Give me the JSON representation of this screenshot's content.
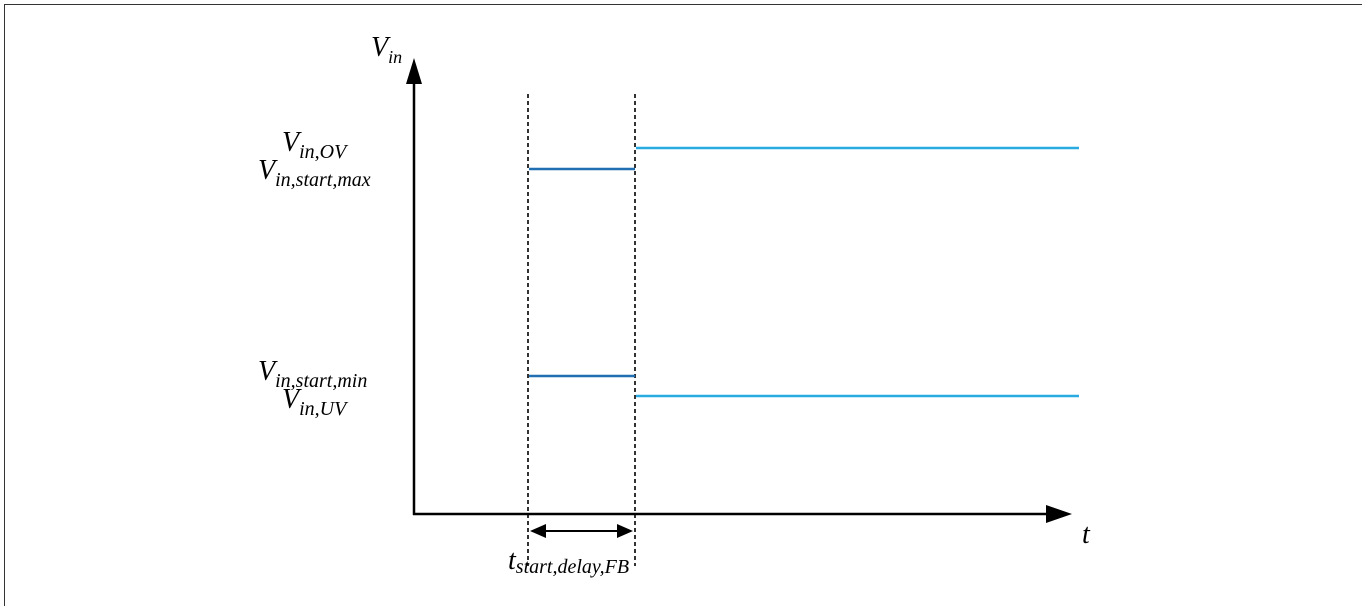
{
  "axes": {
    "y_label": {
      "main": "V",
      "sub": "in"
    },
    "x_label": "t"
  },
  "levels": {
    "ov": {
      "main": "V",
      "sub": "in,OV"
    },
    "start_max": {
      "main": "V",
      "sub": "in,start,max"
    },
    "start_min": {
      "main": "V",
      "sub": "in,start,min"
    },
    "uv": {
      "main": "V",
      "sub": "in,UV"
    }
  },
  "delay_label": {
    "main": "t",
    "sub": "start,delay,FB"
  },
  "colors": {
    "axis": "#000000",
    "start_window_line": "#1f6fb2",
    "operating_line": "#29abe2"
  }
}
